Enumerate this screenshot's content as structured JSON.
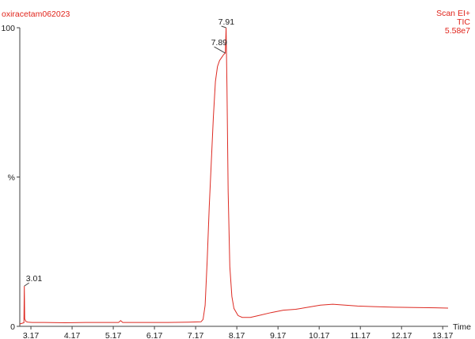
{
  "header": {
    "sample_name": "oxiracetam062023",
    "scan_mode": "Scan EI+",
    "trace_type": "TIC",
    "max_intensity": "5.58e7"
  },
  "chart_data": {
    "type": "line",
    "xlabel": "Time",
    "ylabel": "%",
    "xlim": [
      2.9,
      13.3
    ],
    "ylim": [
      0,
      100
    ],
    "x_ticks": [
      3.17,
      4.17,
      5.17,
      6.17,
      7.17,
      8.17,
      9.17,
      10.17,
      11.17,
      12.17,
      13.17
    ],
    "x_tick_labels": [
      "3.17",
      "4.17",
      "5.17",
      "6.17",
      "7.17",
      "8.17",
      "9.17",
      "10.17",
      "11.17",
      "12.17",
      "13.17"
    ],
    "y_tick_labels": [
      {
        "value": 0,
        "label": "0"
      },
      {
        "value": 50,
        "label": "%"
      },
      {
        "value": 100,
        "label": "100"
      }
    ],
    "peak_labels": [
      {
        "x": 3.01,
        "y": 13.5,
        "label": "3.01"
      },
      {
        "x": 7.89,
        "y": 91.5,
        "label": "7.89"
      },
      {
        "x": 7.91,
        "y": 100,
        "label": "7.91"
      }
    ],
    "color": "#dd2a22",
    "series": [
      {
        "x": [
          2.9,
          3.0,
          3.01,
          3.02,
          3.05,
          3.1,
          3.2,
          3.5,
          4.0,
          4.5,
          5.0,
          5.3,
          5.35,
          5.4,
          5.5,
          6.0,
          6.5,
          7.0,
          7.3,
          7.35,
          7.4,
          7.45,
          7.5,
          7.55,
          7.6,
          7.65,
          7.7,
          7.75,
          7.8,
          7.85,
          7.89,
          7.91,
          7.93,
          7.96,
          8.0,
          8.05,
          8.1,
          8.2,
          8.3,
          8.5,
          8.7,
          9.0,
          9.3,
          9.6,
          9.9,
          10.2,
          10.5,
          10.8,
          11.1,
          11.5,
          12.0,
          12.5,
          13.0,
          13.3
        ],
        "y": [
          0.8,
          1.2,
          13.5,
          2.5,
          1.6,
          1.4,
          1.3,
          1.3,
          1.2,
          1.3,
          1.3,
          1.3,
          1.9,
          1.3,
          1.3,
          1.3,
          1.3,
          1.4,
          1.5,
          2.3,
          7.0,
          22.0,
          40.0,
          55.0,
          70.0,
          82.0,
          87.0,
          89.0,
          90.0,
          91.0,
          91.5,
          100.0,
          80.0,
          45.0,
          20.0,
          10.0,
          6.0,
          3.6,
          3.0,
          3.0,
          3.6,
          4.6,
          5.4,
          5.7,
          6.4,
          7.1,
          7.4,
          7.1,
          6.8,
          6.6,
          6.4,
          6.3,
          6.2,
          6.1
        ]
      }
    ]
  }
}
